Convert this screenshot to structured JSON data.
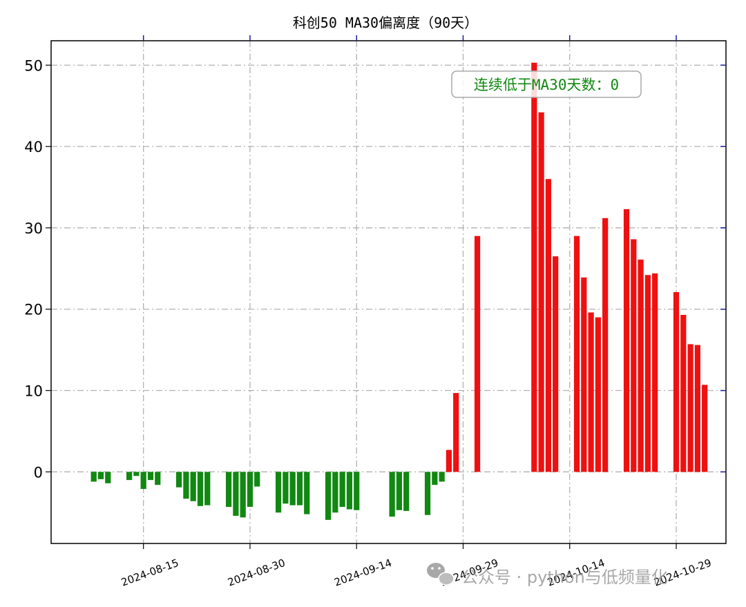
{
  "chart_data": {
    "type": "bar",
    "title": "科创50 MA30偏离度（90天）",
    "xlabel": "",
    "ylabel": "",
    "ylim": [
      -8.8,
      53
    ],
    "xlim": [
      "2024-08-02",
      "2024-11-05"
    ],
    "yticks": [
      0,
      10,
      20,
      30,
      40,
      50
    ],
    "xticks": [
      "2024-08-15",
      "2024-08-30",
      "2024-09-14",
      "2024-09-29",
      "2024-10-14",
      "2024-10-29"
    ],
    "grid": true,
    "colors": {
      "positive": "#ee1111",
      "negative": "#118811",
      "axis_tick": "#1a1aa0",
      "grid": "#b0b0b0"
    },
    "annotation": {
      "text": "连续低于MA30天数：0",
      "color": "#118811",
      "position": "top-right"
    },
    "watermark": {
      "text": "公众号 · python与低频量化",
      "icon": "wechat-icon"
    },
    "series": [
      {
        "x": [
          "2024-08-08",
          "2024-08-09",
          "2024-08-10",
          "2024-08-13",
          "2024-08-14",
          "2024-08-15",
          "2024-08-16",
          "2024-08-17",
          "2024-08-20",
          "2024-08-21",
          "2024-08-22",
          "2024-08-23",
          "2024-08-24",
          "2024-08-27",
          "2024-08-28",
          "2024-08-29",
          "2024-08-30",
          "2024-08-31",
          "2024-09-03",
          "2024-09-04",
          "2024-09-05",
          "2024-09-06",
          "2024-09-07",
          "2024-09-10",
          "2024-09-11",
          "2024-09-12",
          "2024-09-13",
          "2024-09-14",
          "2024-09-19",
          "2024-09-20",
          "2024-09-21",
          "2024-09-24",
          "2024-09-25",
          "2024-09-26",
          "2024-09-27",
          "2024-09-28",
          "2024-10-01",
          "2024-10-09",
          "2024-10-10",
          "2024-10-11",
          "2024-10-12",
          "2024-10-15",
          "2024-10-16",
          "2024-10-17",
          "2024-10-18",
          "2024-10-19",
          "2024-10-22",
          "2024-10-23",
          "2024-10-24",
          "2024-10-25",
          "2024-10-26",
          "2024-10-29",
          "2024-10-30",
          "2024-10-31",
          "2024-11-01",
          "2024-11-02"
        ],
        "values": [
          -1.2,
          -0.9,
          -1.4,
          -1.0,
          -0.5,
          -2.1,
          -1.0,
          -1.6,
          -1.9,
          -3.3,
          -3.6,
          -4.2,
          -4.1,
          -4.3,
          -5.4,
          -5.6,
          -4.3,
          -1.8,
          -5.0,
          -3.9,
          -4.1,
          -4.1,
          -5.2,
          -5.9,
          -5.0,
          -4.3,
          -4.6,
          -4.7,
          -5.5,
          -4.7,
          -4.8,
          -5.3,
          -1.6,
          -1.2,
          2.7,
          9.7,
          29.0,
          50.3,
          44.2,
          36.0,
          26.5,
          29.0,
          23.9,
          19.6,
          19.0,
          31.2,
          32.3,
          28.6,
          26.1,
          24.2,
          24.4,
          22.1,
          19.3,
          15.7,
          15.6,
          10.7
        ]
      }
    ]
  }
}
